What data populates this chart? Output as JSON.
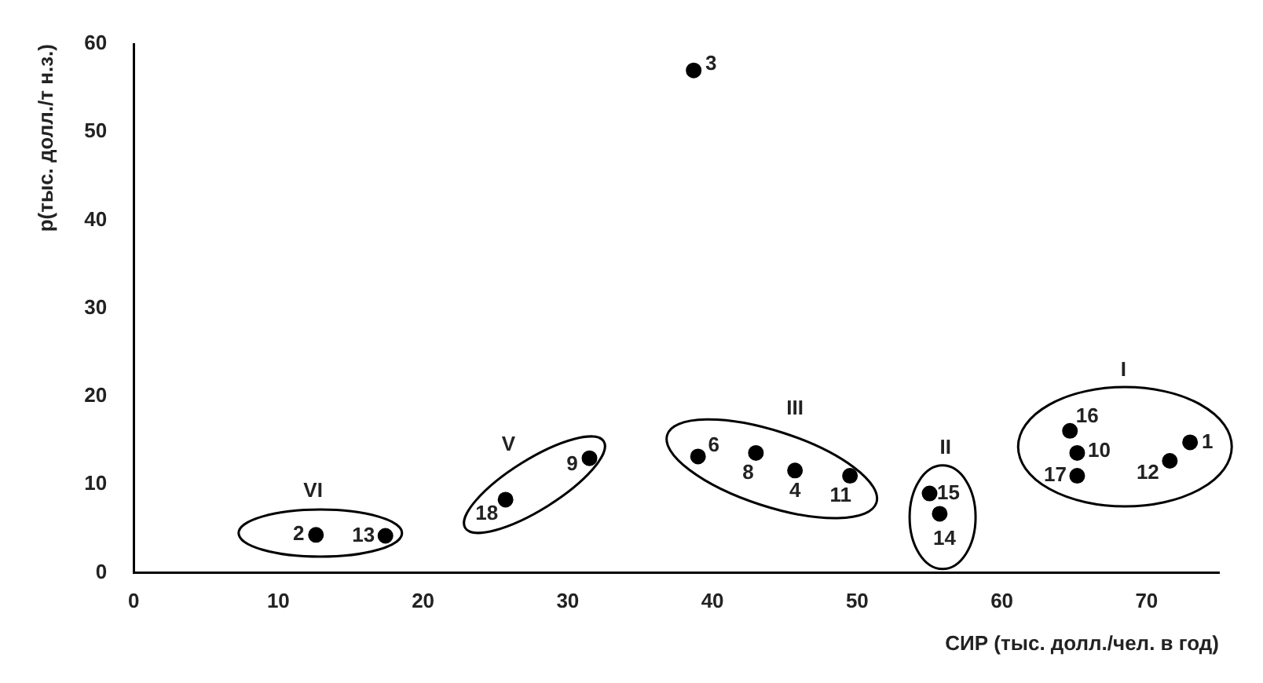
{
  "chart_data": {
    "type": "scatter",
    "xlabel": "СИР (тыс. долл./чел. в год)",
    "ylabel": "p(тыс. долл./т н.з.)",
    "x": [
      73.0,
      12.6,
      38.7,
      45.7,
      39.0,
      43.0,
      31.5,
      65.2,
      49.5,
      71.6,
      17.4,
      55.7,
      55.0,
      64.7,
      65.2,
      25.7
    ],
    "series": [
      {
        "color": "#000000",
        "values": [
          14.8,
          4.3,
          57.0,
          11.6,
          13.2,
          13.6,
          13.0,
          13.6,
          11.0,
          12.7,
          4.2,
          6.7,
          9.0,
          16.1,
          11.0,
          8.3
        ]
      }
    ],
    "xlim": [
      0,
      75
    ],
    "xticks": [
      0,
      10,
      20,
      30,
      40,
      50,
      60,
      70
    ],
    "ylim": [
      0,
      60
    ],
    "yticks": [
      0,
      10,
      20,
      30,
      40,
      50,
      60
    ],
    "grid": false,
    "legend": false,
    "marker": "circle",
    "annotations": [
      {
        "text": "1",
        "x": 73.0,
        "y": 14.8
      },
      {
        "text": "2",
        "x": 12.6,
        "y": 4.3
      },
      {
        "text": "3",
        "x": 38.7,
        "y": 57.0
      },
      {
        "text": "4",
        "x": 45.7,
        "y": 11.6
      },
      {
        "text": "6",
        "x": 39.0,
        "y": 13.2
      },
      {
        "text": "8",
        "x": 43.0,
        "y": 13.6
      },
      {
        "text": "9",
        "x": 31.5,
        "y": 13.0
      },
      {
        "text": "10",
        "x": 65.2,
        "y": 13.6
      },
      {
        "text": "11",
        "x": 49.5,
        "y": 11.0
      },
      {
        "text": "12",
        "x": 71.6,
        "y": 12.7
      },
      {
        "text": "13",
        "x": 17.4,
        "y": 4.2
      },
      {
        "text": "14",
        "x": 55.7,
        "y": 6.7
      },
      {
        "text": "15",
        "x": 55.0,
        "y": 9.0
      },
      {
        "text": "16",
        "x": 64.7,
        "y": 16.1
      },
      {
        "text": "17",
        "x": 65.2,
        "y": 11.0
      },
      {
        "text": "18",
        "x": 25.7,
        "y": 8.3
      },
      "I",
      "II",
      "III",
      "V",
      "VI"
    ]
  }
}
